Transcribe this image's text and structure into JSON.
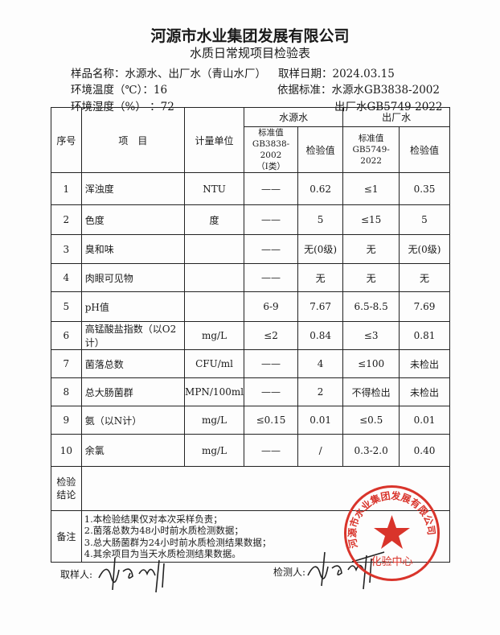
{
  "company": "河源市水业集团发展有限公司",
  "title": "水质日常规项目检验表",
  "info": {
    "sample": "样品名称：水源水、出厂水（青山水厂）",
    "date": "取样日期：2024.03.15",
    "temp": "环境温度（℃）：16",
    "basis": "依据标准：水源水GB3838-2002",
    "humidity": "环境湿度（%）  ：72",
    "basis2": "出厂水GB5749-2022"
  },
  "header": {
    "no": "序号",
    "item": "项　目",
    "unit": "计量单位",
    "source": "水源水",
    "outlet": "出厂水",
    "std1": "标准值",
    "std1_code": "GB3838-2002",
    "std1_class": "（Ⅰ类）",
    "val": "检验值",
    "std2": "标准值",
    "std2_code": "GB5749-2022"
  },
  "rows": [
    {
      "no": "1",
      "item": "浑浊度",
      "unit": "NTU",
      "s_std": "——",
      "s_val": "0.62",
      "o_std": "≤1",
      "o_val": "0.35"
    },
    {
      "no": "2",
      "item": "色度",
      "unit": "度",
      "s_std": "——",
      "s_val": "5",
      "o_std": "≤15",
      "o_val": "5"
    },
    {
      "no": "3",
      "item": "臭和味",
      "unit": "",
      "s_std": "——",
      "s_val": "无(0级)",
      "o_std": "无",
      "o_val": "无(0级)"
    },
    {
      "no": "4",
      "item": "肉眼可见物",
      "unit": "",
      "s_std": "——",
      "s_val": "无",
      "o_std": "无",
      "o_val": "无"
    },
    {
      "no": "5",
      "item": "pH值",
      "unit": "",
      "s_std": "6-9",
      "s_val": "7.67",
      "o_std": "6.5-8.5",
      "o_val": "7.69"
    },
    {
      "no": "6",
      "item": "高锰酸盐指数（以O2计）",
      "unit": "mg/L",
      "s_std": "≤2",
      "s_val": "0.84",
      "o_std": "≤3",
      "o_val": "0.81"
    },
    {
      "no": "7",
      "item": "菌落总数",
      "unit": "CFU/ml",
      "s_std": "——",
      "s_val": "4",
      "o_std": "≤100",
      "o_val": "未检出"
    },
    {
      "no": "8",
      "item": "总大肠菌群",
      "unit": "MPN/100ml",
      "s_std": "——",
      "s_val": "2",
      "o_std": "不得检出",
      "o_val": "未检出"
    },
    {
      "no": "9",
      "item": "氨（以N计）",
      "unit": "mg/L",
      "s_std": "≤0.15",
      "s_val": "0.01",
      "o_std": "≤0.5",
      "o_val": "0.01"
    },
    {
      "no": "10",
      "item": "余氯",
      "unit": "mg/L",
      "s_std": "——",
      "s_val": "/",
      "o_std": "0.3-2.0",
      "o_val": "0.40"
    }
  ],
  "conclusion_label": "检验\n结论",
  "notes_label": "备注",
  "notes": [
    "1.本检验结果仅对本次采样负责；",
    "2.菌落总数为48小时前水质检测数据；",
    "3.总大肠菌群为24小时前水质检测结果数据；",
    "4.其余项目为当天水质检测结果数据。"
  ],
  "sampler_label": "取样人:",
  "tester_label": "检测人:",
  "stamp": {
    "outer": "河源市水业集团发展有限公司",
    "inner": "化验中心",
    "color": "#d9342b"
  }
}
